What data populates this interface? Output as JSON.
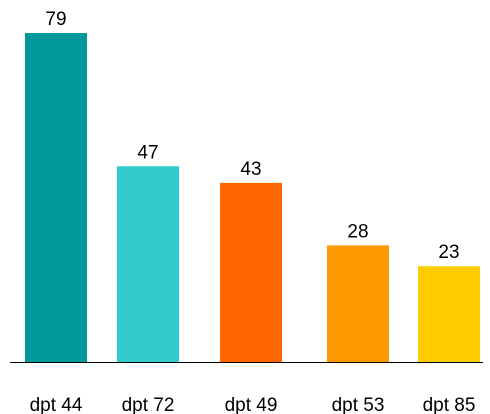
{
  "chart_data": {
    "type": "bar",
    "title": "",
    "xlabel": "",
    "ylabel": "",
    "categories": [
      "dpt 44",
      "dpt 72",
      "dpt 49",
      "dpt 53",
      "dpt 85"
    ],
    "values": [
      79,
      47,
      43,
      28,
      23
    ],
    "colors": [
      "#009999",
      "#33cccc",
      "#ff6600",
      "#ff9900",
      "#ffcc00"
    ],
    "ylim": [
      0,
      79
    ],
    "grid": false,
    "legend": "none",
    "axis_color": "#000000"
  }
}
